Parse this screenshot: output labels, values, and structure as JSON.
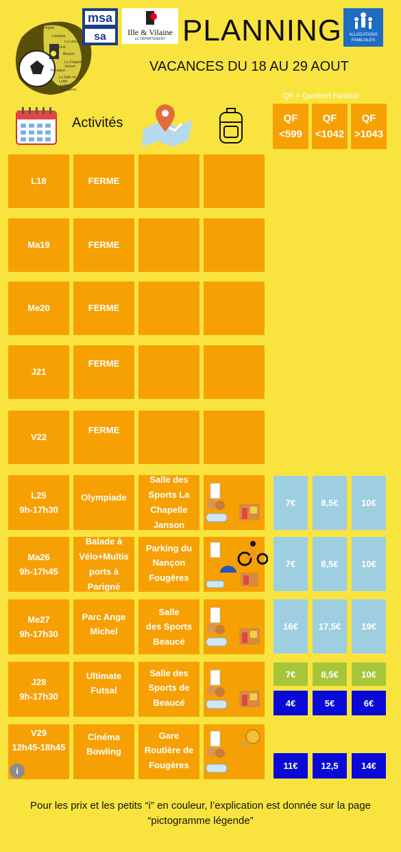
{
  "header": {
    "title": "PLANNING",
    "subtitle": "VACANCES DU 18 AU 29 AOUT",
    "qf_note": "QF = Quotient Familial",
    "activities_label": "Activités",
    "logos": {
      "msa": "msa",
      "ille_vilaine_main": "Ille & Vilaine",
      "ille_vilaine_sub": "LE DÉPARTEMENT",
      "caf_line1": "ALLOCATIONS",
      "caf_line2": "FAMILIALES",
      "map_towns": [
        "Parigné",
        "Landéan",
        "La Loroux",
        "Lagniné",
        "Beaucé",
        "La Chapelle Janson",
        "Fleurigné",
        "La Selle en Luitré",
        "Luitré Dompierre"
      ]
    }
  },
  "qf_columns": [
    {
      "label": "QF",
      "range": "<599"
    },
    {
      "label": "QF",
      "range": "<1042"
    },
    {
      "label": "QF",
      "range": ">1043"
    }
  ],
  "rows": [
    {
      "day": "L18",
      "hours": "",
      "activity": "FERME",
      "place": "",
      "prices": []
    },
    {
      "day": "Ma19",
      "hours": "",
      "activity": "FERME",
      "place": "",
      "prices": []
    },
    {
      "day": "Me20",
      "hours": "",
      "activity": "FERME",
      "place": "",
      "prices": []
    },
    {
      "day": "J21",
      "hours": "",
      "activity": "FERME",
      "place": "",
      "prices": []
    },
    {
      "day": "V22",
      "hours": "",
      "activity": "FERME",
      "place": "",
      "prices": []
    },
    {
      "day": "L25",
      "hours": "9h-17h30",
      "activity": "Olympiade",
      "place": "Salle des Sports La Chapelle Janson",
      "prices": [
        "7€",
        "8,5€",
        "10€"
      ]
    },
    {
      "day": "Ma26",
      "hours": "9h-17h45",
      "activity": "Balade à Vélo+Multisports à Parigné",
      "place": "Parking du Nançon Fougères",
      "prices": [
        "7€",
        "8,5€",
        "10€"
      ]
    },
    {
      "day": "Me27",
      "hours": "9h-17h30",
      "activity": "Parc Ange Michel",
      "place": "Salle des Sports Beaucé",
      "prices": [
        "16€",
        "17,5€",
        "19€"
      ]
    },
    {
      "day": "J28",
      "hours": "9h-17h30",
      "activity": "Ultimate Futsal",
      "place": "Salle des Sports de Beaucé",
      "prices": [
        "7€",
        "8,5€",
        "10€"
      ],
      "prices_extra": [
        "4€",
        "5€",
        "6€"
      ]
    },
    {
      "day": "V29",
      "hours": "12h45-18h45",
      "activity": "Cinéma Bowling",
      "place": "Gare Routière de Fougères",
      "prices": [
        "11€",
        "12,5",
        "14€"
      ]
    }
  ],
  "row_display": {
    "ma26_activity_lines": [
      "Balade à",
      "Vélo+Multis",
      "ports à",
      "Parigné"
    ],
    "l25_place_lines": [
      "Salle des",
      "Sports La",
      "Chapelle",
      "Janson"
    ],
    "ma26_place_lines": [
      "Parking du",
      "Nançon",
      "Fougères"
    ],
    "me27_activity_lines": [
      "Parc Ange",
      "Michel"
    ],
    "me27_place_lines": [
      "Salle",
      "des Sports",
      "Beaucé"
    ],
    "j28_activity_lines": [
      "Ultimate",
      "Futsal"
    ],
    "j28_place_lines": [
      "Salle des",
      "Sports de",
      "Beaucé"
    ],
    "v29_activity_lines": [
      "Cinéma",
      "Bowling"
    ],
    "v29_place_lines": [
      "Gare",
      "Routière de",
      "Fougères"
    ]
  },
  "info_icon": "i",
  "footer": {
    "line1": "Pour les prix et les petits “i” en couleur, l’explication est donnée sur la page",
    "line2": "“pictogramme légende”"
  },
  "colors": {
    "background": "#f9e43f",
    "cell": "#f7a004",
    "price_light_blue": "#9ecfe0",
    "price_green": "#a6c63a",
    "price_blue": "#0a0ad8"
  }
}
